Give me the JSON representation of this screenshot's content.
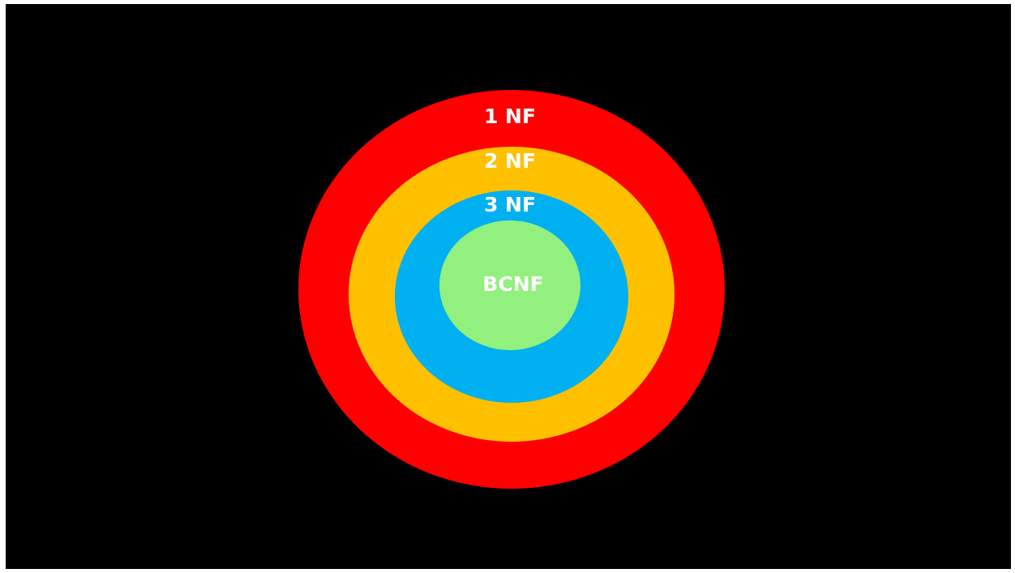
{
  "diagram": {
    "background_color": "#000000",
    "rings": [
      {
        "label": "1 NF",
        "color": "#ff0000"
      },
      {
        "label": "2 NF",
        "color": "#ffc000"
      },
      {
        "label": "3 NF",
        "color": "#00b0f0"
      },
      {
        "label": "BCNF",
        "color": "#92f07e"
      }
    ]
  }
}
